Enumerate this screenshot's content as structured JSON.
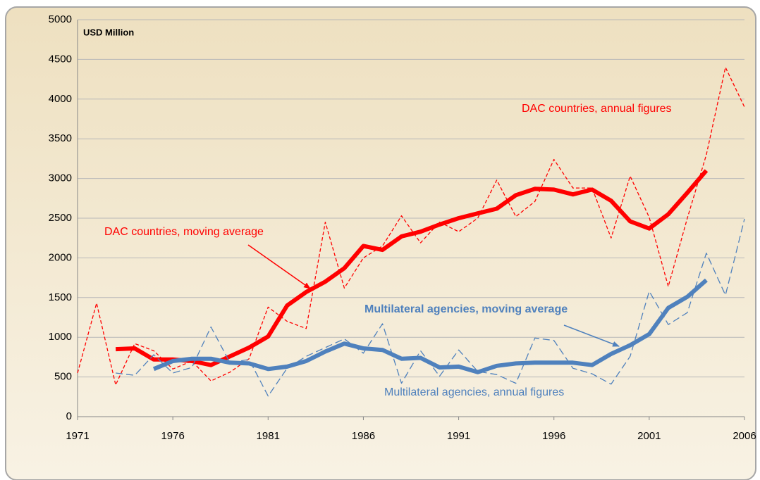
{
  "chart_data": {
    "type": "line",
    "y_label": "USD Million",
    "x": [
      1971,
      1972,
      1973,
      1974,
      1975,
      1976,
      1977,
      1978,
      1979,
      1980,
      1981,
      1982,
      1983,
      1984,
      1985,
      1986,
      1987,
      1988,
      1989,
      1990,
      1991,
      1992,
      1993,
      1994,
      1995,
      1996,
      1997,
      1998,
      1999,
      2000,
      2001,
      2002,
      2003,
      2004,
      2005,
      2006
    ],
    "xlim": [
      1971,
      2006
    ],
    "xticks": [
      1971,
      1976,
      1981,
      1986,
      1991,
      1996,
      2001,
      2006
    ],
    "ylim": [
      0,
      5000
    ],
    "yticks": [
      0,
      500,
      1000,
      1500,
      2000,
      2500,
      3000,
      3500,
      4000,
      4500,
      5000
    ],
    "grid": true,
    "series": [
      {
        "name": "DAC countries, annual figures",
        "color": "#ff0000",
        "style": "dashed",
        "values": [
          550,
          1430,
          400,
          920,
          830,
          600,
          700,
          450,
          560,
          730,
          1380,
          1200,
          1110,
          2450,
          1620,
          2000,
          2150,
          2530,
          2190,
          2450,
          2330,
          2500,
          2980,
          2520,
          2710,
          3240,
          2880,
          2880,
          2250,
          3030,
          2510,
          1640,
          2500,
          3300,
          4400,
          3900
        ]
      },
      {
        "name": "DAC countries, moving average",
        "color": "#ff0000",
        "style": "thick",
        "values": [
          null,
          null,
          850,
          860,
          720,
          720,
          700,
          650,
          760,
          870,
          1010,
          1400,
          1570,
          1700,
          1870,
          2150,
          2100,
          2270,
          2330,
          2420,
          2500,
          2560,
          2620,
          2790,
          2870,
          2860,
          2800,
          2860,
          2720,
          2460,
          2370,
          2550,
          2820,
          3100,
          null,
          null
        ]
      },
      {
        "name": "Multilateral agencies, moving average",
        "color": "#4f81bd",
        "style": "thick",
        "values": [
          null,
          null,
          null,
          null,
          600,
          700,
          730,
          730,
          680,
          670,
          600,
          630,
          700,
          820,
          920,
          860,
          840,
          730,
          740,
          620,
          630,
          560,
          640,
          670,
          680,
          680,
          680,
          650,
          790,
          900,
          1040,
          1370,
          1510,
          1720,
          null,
          null
        ]
      },
      {
        "name": "Multilateral agencies, annual figures",
        "color": "#4f81bd",
        "style": "dashed",
        "values": [
          null,
          null,
          550,
          520,
          780,
          550,
          620,
          1130,
          680,
          720,
          260,
          610,
          760,
          870,
          980,
          800,
          1170,
          420,
          830,
          510,
          840,
          570,
          530,
          420,
          990,
          960,
          610,
          540,
          410,
          760,
          1580,
          1160,
          1310,
          2060,
          1530,
          2490
        ]
      }
    ]
  }
}
